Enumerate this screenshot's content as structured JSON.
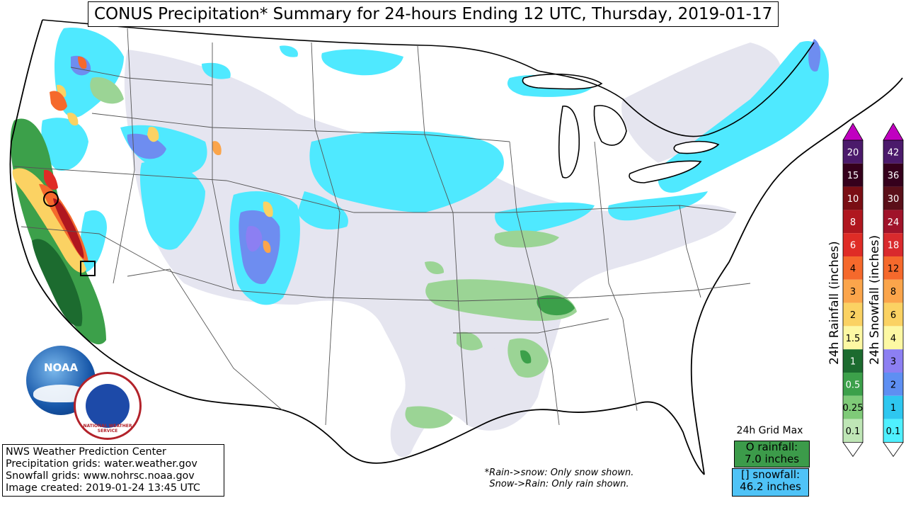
{
  "title": "CONUS Precipitation* Summary for 24-hours Ending 12 UTC, Thursday, 2019-01-17",
  "credits": [
    "NWS Weather Prediction Center",
    "Precipitation grids: water.weather.gov",
    "Snowfall grids: www.nohrsc.noaa.gov",
    "Image created: 2019-01-24 13:45 UTC"
  ],
  "note_lines": [
    "*Rain->snow: Only snow shown.",
    "Snow->Rain: Only rain shown."
  ],
  "grid_max": {
    "label": "24h Grid Max",
    "rain_line1": "O rainfall:",
    "rain_line2": "7.0 inches",
    "snow_line1": "[] snowfall:",
    "snow_line2": "46.2 inches"
  },
  "rain_scale": {
    "title": "24h Rainfall (inches)",
    "levels": [
      "20",
      "15",
      "10",
      "8",
      "6",
      "4",
      "3",
      "2",
      "1.5",
      "1",
      "0.5",
      "0.25",
      "0.1"
    ],
    "colors": [
      "#4b1a6b",
      "#35001c",
      "#7a0e14",
      "#b0171f",
      "#df2c26",
      "#f5692c",
      "#fba54b",
      "#fbd263",
      "#fdf8a3",
      "#1c6b2f",
      "#3ca04a",
      "#7fca78",
      "#bfe6b6"
    ],
    "cap_color": "#c000c0"
  },
  "snow_scale": {
    "title": "24h Snowfall (inches)",
    "levels": [
      "42",
      "36",
      "30",
      "24",
      "18",
      "12",
      "8",
      "6",
      "4",
      "3",
      "2",
      "1",
      "0.1"
    ],
    "colors": [
      "#4b1a6b",
      "#35001c",
      "#5a0f19",
      "#a0132a",
      "#d92a2d",
      "#f5692c",
      "#fba54b",
      "#fbd263",
      "#fdf8a3",
      "#8c7ff2",
      "#5e8ff2",
      "#2ec7f0",
      "#4ff0ff"
    ],
    "cap_color": "#c000c0"
  },
  "logos": {
    "noaa": "NOAA",
    "nws": "NATIONAL WEATHER SERVICE"
  },
  "colors": {
    "snow_light": "#4fe9ff",
    "trace": "#e4e4ef",
    "rain_light": "#9bd495"
  }
}
